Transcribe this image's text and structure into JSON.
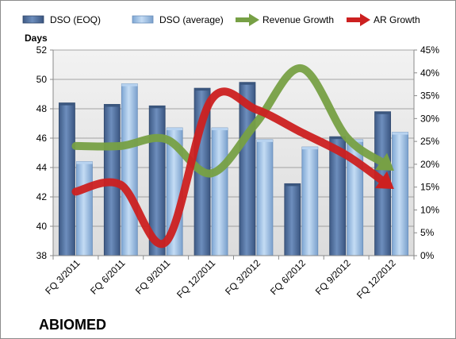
{
  "chart_data": {
    "type": "bar",
    "company": "ABIOMED",
    "y_left_title": "Days",
    "categories": [
      "FQ 3/2011",
      "FQ 6/2011",
      "FQ 9/2011",
      "FQ 12/2011",
      "FQ 3/2012",
      "FQ 6/2012",
      "FQ 9/2012",
      "FQ 12/2012"
    ],
    "ylim_left": [
      38,
      52
    ],
    "yticks_left": [
      "38",
      "40",
      "42",
      "44",
      "46",
      "48",
      "50",
      "52"
    ],
    "ylim_right": [
      0,
      45
    ],
    "yticks_right": [
      "0%",
      "5%",
      "10%",
      "15%",
      "20%",
      "25%",
      "30%",
      "35%",
      "40%",
      "45%"
    ],
    "series": [
      {
        "name": "DSO (EOQ)",
        "type": "bar",
        "axis": "left",
        "color": "#4f6f9f",
        "values": [
          48.4,
          48.3,
          48.2,
          49.4,
          49.8,
          42.9,
          46.1,
          47.8
        ]
      },
      {
        "name": "DSO (average)",
        "type": "bar",
        "axis": "left",
        "color": "#9ec0e6",
        "values": [
          44.4,
          49.7,
          46.7,
          46.7,
          45.9,
          45.4,
          45.9,
          46.4
        ]
      },
      {
        "name": "Revenue Growth",
        "type": "line",
        "axis": "right",
        "color": "#77a045",
        "values": [
          24,
          24,
          25.5,
          18,
          29,
          41,
          26,
          19
        ]
      },
      {
        "name": "AR Growth",
        "type": "line",
        "axis": "right",
        "color": "#cc2020",
        "values": [
          14,
          15.5,
          3,
          34,
          32,
          27,
          22,
          15
        ]
      }
    ],
    "legend_position": "top",
    "grid": true
  }
}
